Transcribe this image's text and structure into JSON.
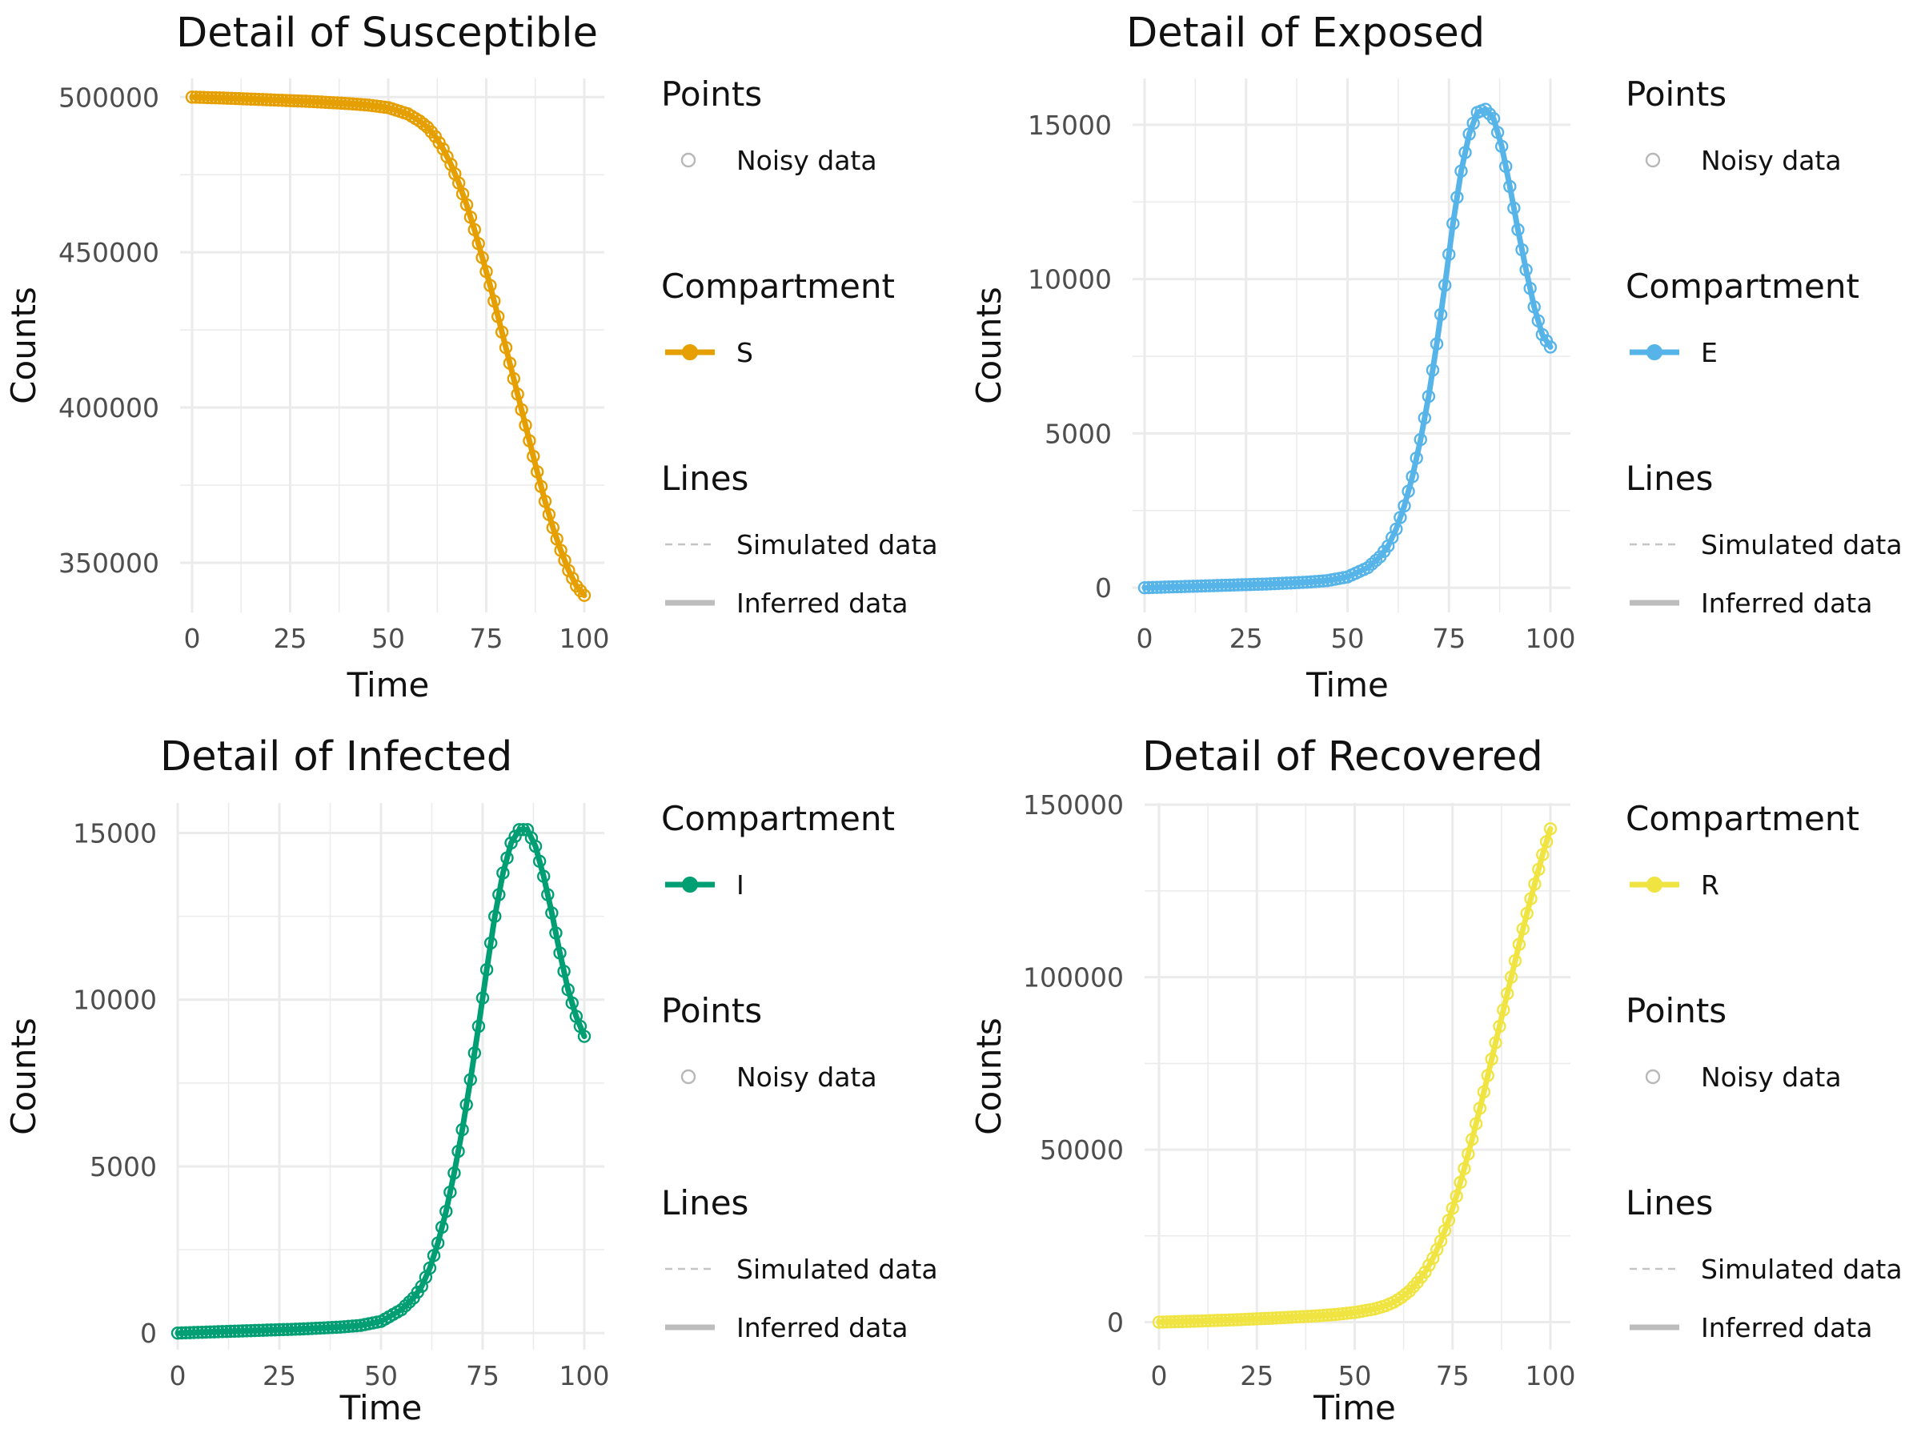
{
  "chart_data": [
    {
      "type": "line",
      "title": "Detail of Susceptible",
      "xlabel": "Time",
      "ylabel": "Counts",
      "xlim": [
        0,
        100
      ],
      "ylim": [
        334000,
        506000
      ],
      "xticks": [
        0,
        25,
        50,
        75,
        100
      ],
      "xtick_labels": [
        "0",
        "25",
        "50",
        "75",
        "100"
      ],
      "yticks": [
        350000,
        400000,
        450000,
        500000
      ],
      "ytick_labels": [
        "350000",
        "400000",
        "450000",
        "500000"
      ],
      "color": "#E69F00",
      "grid": true,
      "legend_position": "right",
      "legend": [
        {
          "title": "Points",
          "items": [
            {
              "kind": "point",
              "label": "Noisy data"
            }
          ]
        },
        {
          "title": "Compartment",
          "items": [
            {
              "kind": "series",
              "label": "S"
            }
          ]
        },
        {
          "title": "Lines",
          "items": [
            {
              "kind": "dashed",
              "label": "Simulated data"
            },
            {
              "kind": "solid",
              "label": "Inferred data"
            }
          ]
        }
      ],
      "series": [
        {
          "name": "S",
          "x": [
            0,
            10,
            20,
            30,
            40,
            45,
            50,
            55,
            58,
            60,
            62,
            64,
            66,
            68,
            70,
            72,
            74,
            76,
            78,
            80,
            82,
            84,
            86,
            88,
            90,
            92,
            94,
            96,
            98,
            100
          ],
          "y": [
            500000,
            499600,
            499100,
            498600,
            497900,
            497400,
            496600,
            494600,
            492300,
            490300,
            487300,
            483300,
            478300,
            472300,
            465300,
            457300,
            448300,
            439300,
            429300,
            419300,
            409300,
            399300,
            389300,
            379300,
            369800,
            361300,
            354000,
            347500,
            342500,
            339500
          ]
        }
      ]
    },
    {
      "type": "line",
      "title": "Detail of Exposed",
      "xlabel": "Time",
      "ylabel": "Counts",
      "xlim": [
        0,
        100
      ],
      "ylim": [
        -800,
        16500
      ],
      "xticks": [
        0,
        25,
        50,
        75,
        100
      ],
      "xtick_labels": [
        "0",
        "25",
        "50",
        "75",
        "100"
      ],
      "yticks": [
        0,
        5000,
        10000,
        15000
      ],
      "ytick_labels": [
        "0",
        "5000",
        "10000",
        "15000"
      ],
      "color": "#56B4E9",
      "grid": true,
      "legend_position": "right",
      "legend": [
        {
          "title": "Points",
          "items": [
            {
              "kind": "point",
              "label": "Noisy data"
            }
          ]
        },
        {
          "title": "Compartment",
          "items": [
            {
              "kind": "series",
              "label": "E"
            }
          ]
        },
        {
          "title": "Lines",
          "items": [
            {
              "kind": "dashed",
              "label": "Simulated data"
            },
            {
              "kind": "solid",
              "label": "Inferred data"
            }
          ]
        }
      ],
      "series": [
        {
          "name": "E",
          "x": [
            0,
            10,
            20,
            30,
            40,
            45,
            50,
            55,
            58,
            60,
            62,
            64,
            66,
            68,
            70,
            72,
            74,
            76,
            78,
            80,
            82,
            84,
            86,
            88,
            90,
            92,
            94,
            96,
            98,
            100
          ],
          "y": [
            0,
            40,
            80,
            120,
            180,
            230,
            350,
            650,
            1000,
            1350,
            1900,
            2650,
            3600,
            4800,
            6200,
            7900,
            9800,
            11800,
            13500,
            14700,
            15400,
            15500,
            15200,
            14300,
            13000,
            11600,
            10300,
            9100,
            8200,
            7800
          ]
        }
      ]
    },
    {
      "type": "line",
      "title": "Detail of Infected",
      "xlabel": "Time",
      "ylabel": "Counts",
      "xlim": [
        0,
        100
      ],
      "ylim": [
        -500,
        15900
      ],
      "xticks": [
        0,
        25,
        50,
        75,
        100
      ],
      "xtick_labels": [
        "0",
        "25",
        "50",
        "75",
        "100"
      ],
      "yticks": [
        0,
        5000,
        10000,
        15000
      ],
      "ytick_labels": [
        "0",
        "5000",
        "10000",
        "15000"
      ],
      "color": "#009E73",
      "grid": true,
      "legend_position": "right",
      "legend": [
        {
          "title": "Compartment",
          "items": [
            {
              "kind": "series",
              "label": "I"
            }
          ]
        },
        {
          "title": "Points",
          "items": [
            {
              "kind": "point",
              "label": "Noisy data"
            }
          ]
        },
        {
          "title": "Lines",
          "items": [
            {
              "kind": "dashed",
              "label": "Simulated data"
            },
            {
              "kind": "solid",
              "label": "Inferred data"
            }
          ]
        }
      ],
      "series": [
        {
          "name": "I",
          "x": [
            0,
            10,
            20,
            30,
            40,
            45,
            50,
            55,
            58,
            60,
            62,
            64,
            66,
            68,
            70,
            72,
            74,
            76,
            78,
            80,
            82,
            84,
            86,
            88,
            90,
            92,
            94,
            96,
            98,
            100
          ],
          "y": [
            0,
            40,
            80,
            120,
            180,
            230,
            350,
            700,
            1050,
            1400,
            1950,
            2700,
            3650,
            4800,
            6100,
            7600,
            9200,
            10900,
            12500,
            13800,
            14700,
            15100,
            15100,
            14600,
            13700,
            12600,
            11400,
            10300,
            9500,
            8900
          ]
        }
      ]
    },
    {
      "type": "line",
      "title": "Detail of Recovered",
      "xlabel": "Time",
      "ylabel": "Counts",
      "xlim": [
        0,
        100
      ],
      "ylim": [
        -8000,
        150500
      ],
      "xticks": [
        0,
        25,
        50,
        75,
        100
      ],
      "xtick_labels": [
        "0",
        "25",
        "50",
        "75",
        "100"
      ],
      "yticks": [
        0,
        50000,
        100000,
        150000
      ],
      "ytick_labels": [
        "0",
        "50000",
        "100000",
        "150000"
      ],
      "color": "#F0E442",
      "grid": true,
      "legend_position": "right",
      "legend": [
        {
          "title": "Compartment",
          "items": [
            {
              "kind": "series",
              "label": "R"
            }
          ]
        },
        {
          "title": "Points",
          "items": [
            {
              "kind": "point",
              "label": "Noisy data"
            }
          ]
        },
        {
          "title": "Lines",
          "items": [
            {
              "kind": "dashed",
              "label": "Simulated data"
            },
            {
              "kind": "solid",
              "label": "Inferred data"
            }
          ]
        }
      ],
      "series": [
        {
          "name": "R",
          "x": [
            0,
            10,
            20,
            30,
            40,
            45,
            50,
            55,
            58,
            60,
            62,
            64,
            66,
            68,
            70,
            72,
            74,
            76,
            78,
            80,
            82,
            84,
            86,
            88,
            90,
            92,
            94,
            96,
            98,
            100
          ],
          "y": [
            0,
            300,
            700,
            1200,
            1800,
            2200,
            2800,
            3800,
            4800,
            5800,
            7200,
            9000,
            11500,
            14500,
            18500,
            23500,
            29500,
            36500,
            44500,
            53000,
            62000,
            71500,
            81000,
            90500,
            100000,
            109500,
            118500,
            127000,
            135500,
            143000
          ]
        }
      ]
    }
  ]
}
